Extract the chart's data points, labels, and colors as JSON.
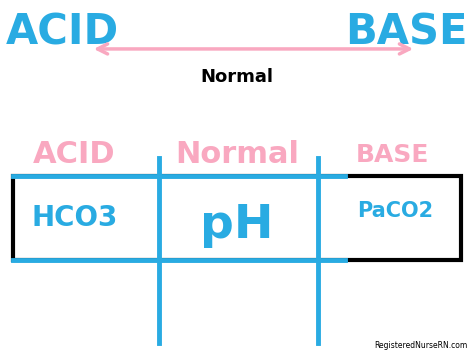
{
  "bg_color": "#ffffff",
  "cyan": "#29ABE2",
  "pink": "#F9A8C0",
  "black": "#000000",
  "acid_top_text": "ACID",
  "base_top_text": "BASE",
  "normal_top_text": "Normal",
  "acid_mid_text": "ACID",
  "normal_mid_text": "Normal",
  "base_mid_text": "BASE",
  "hco3_text": "HCO3",
  "ph_text": "pH",
  "paco2_text": "PaCO2",
  "watermark": "RegisteredNurseRN.com",
  "figw": 4.74,
  "figh": 3.55,
  "dpi": 100
}
